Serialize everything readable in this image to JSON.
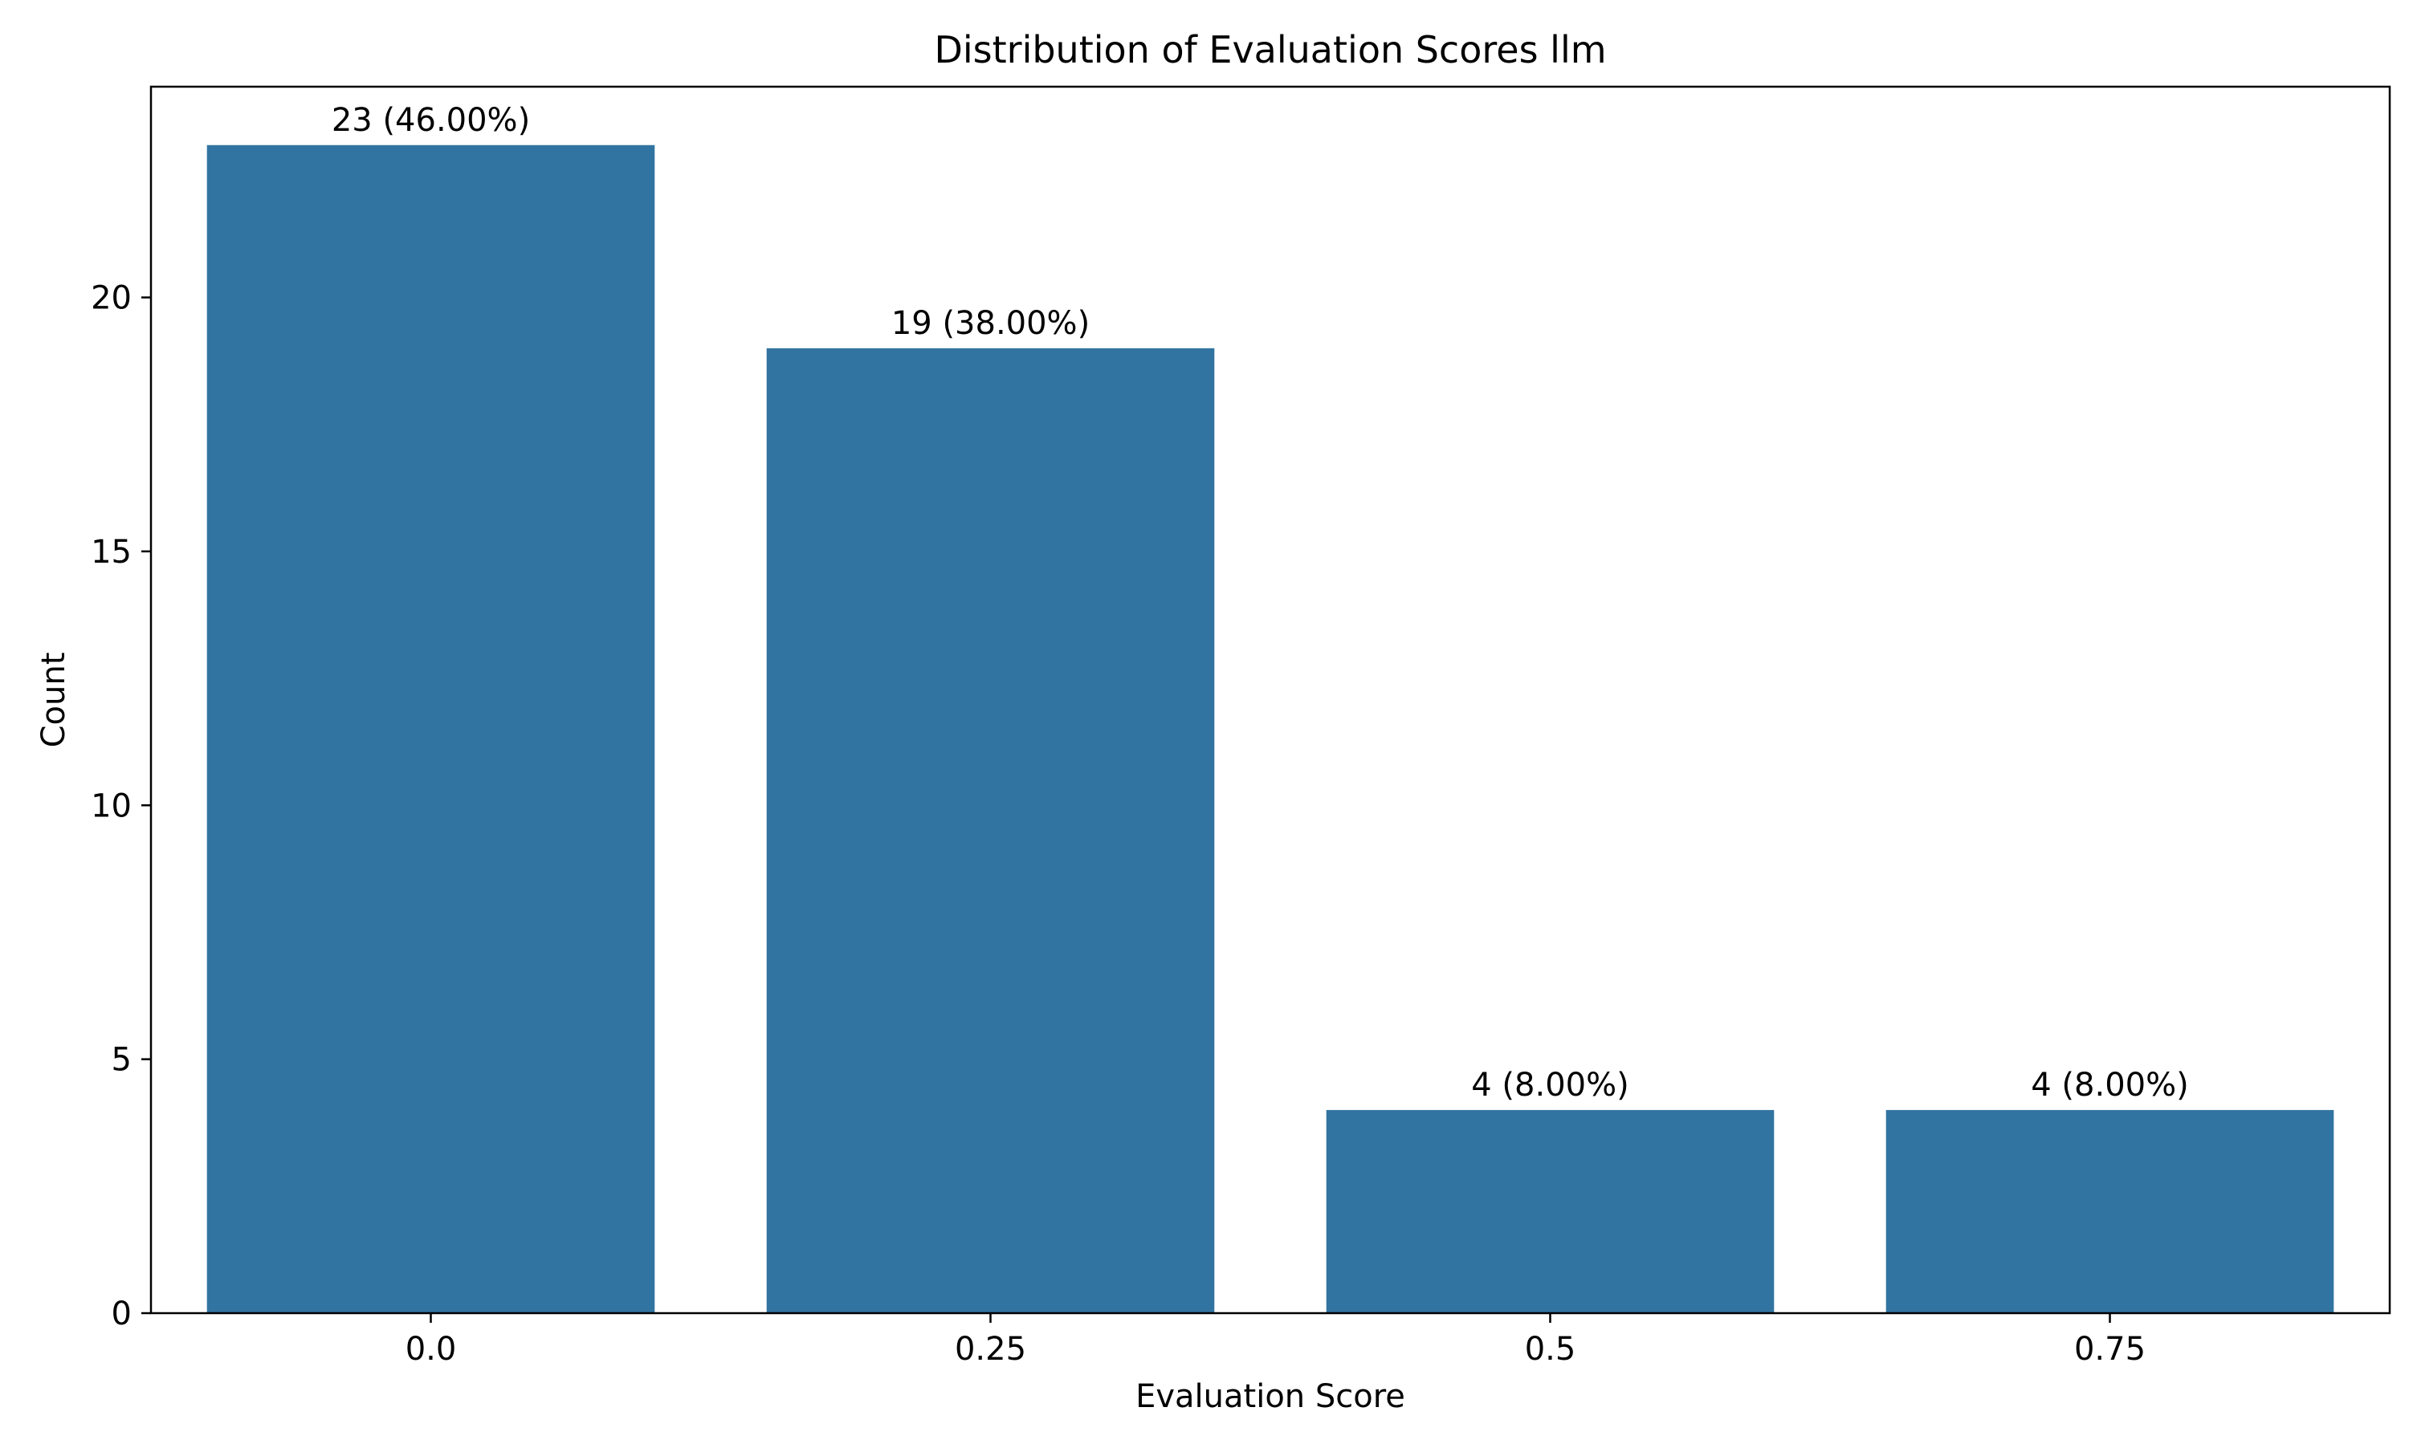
{
  "chart_data": {
    "type": "bar",
    "title": "Distribution of Evaluation Scores llm",
    "xlabel": "Evaluation Score",
    "ylabel": "Count",
    "categories": [
      "0.0",
      "0.25",
      "0.5",
      "0.75"
    ],
    "values": [
      23,
      19,
      4,
      4
    ],
    "bar_labels": [
      "23 (46.00%)",
      "19 (38.00%)",
      "4 (8.00%)",
      "4 (8.00%)"
    ],
    "ylim": [
      0,
      24.15
    ],
    "yticks": [
      0,
      5,
      10,
      15,
      20
    ],
    "grid": false,
    "bar_color": "#3274a1"
  }
}
